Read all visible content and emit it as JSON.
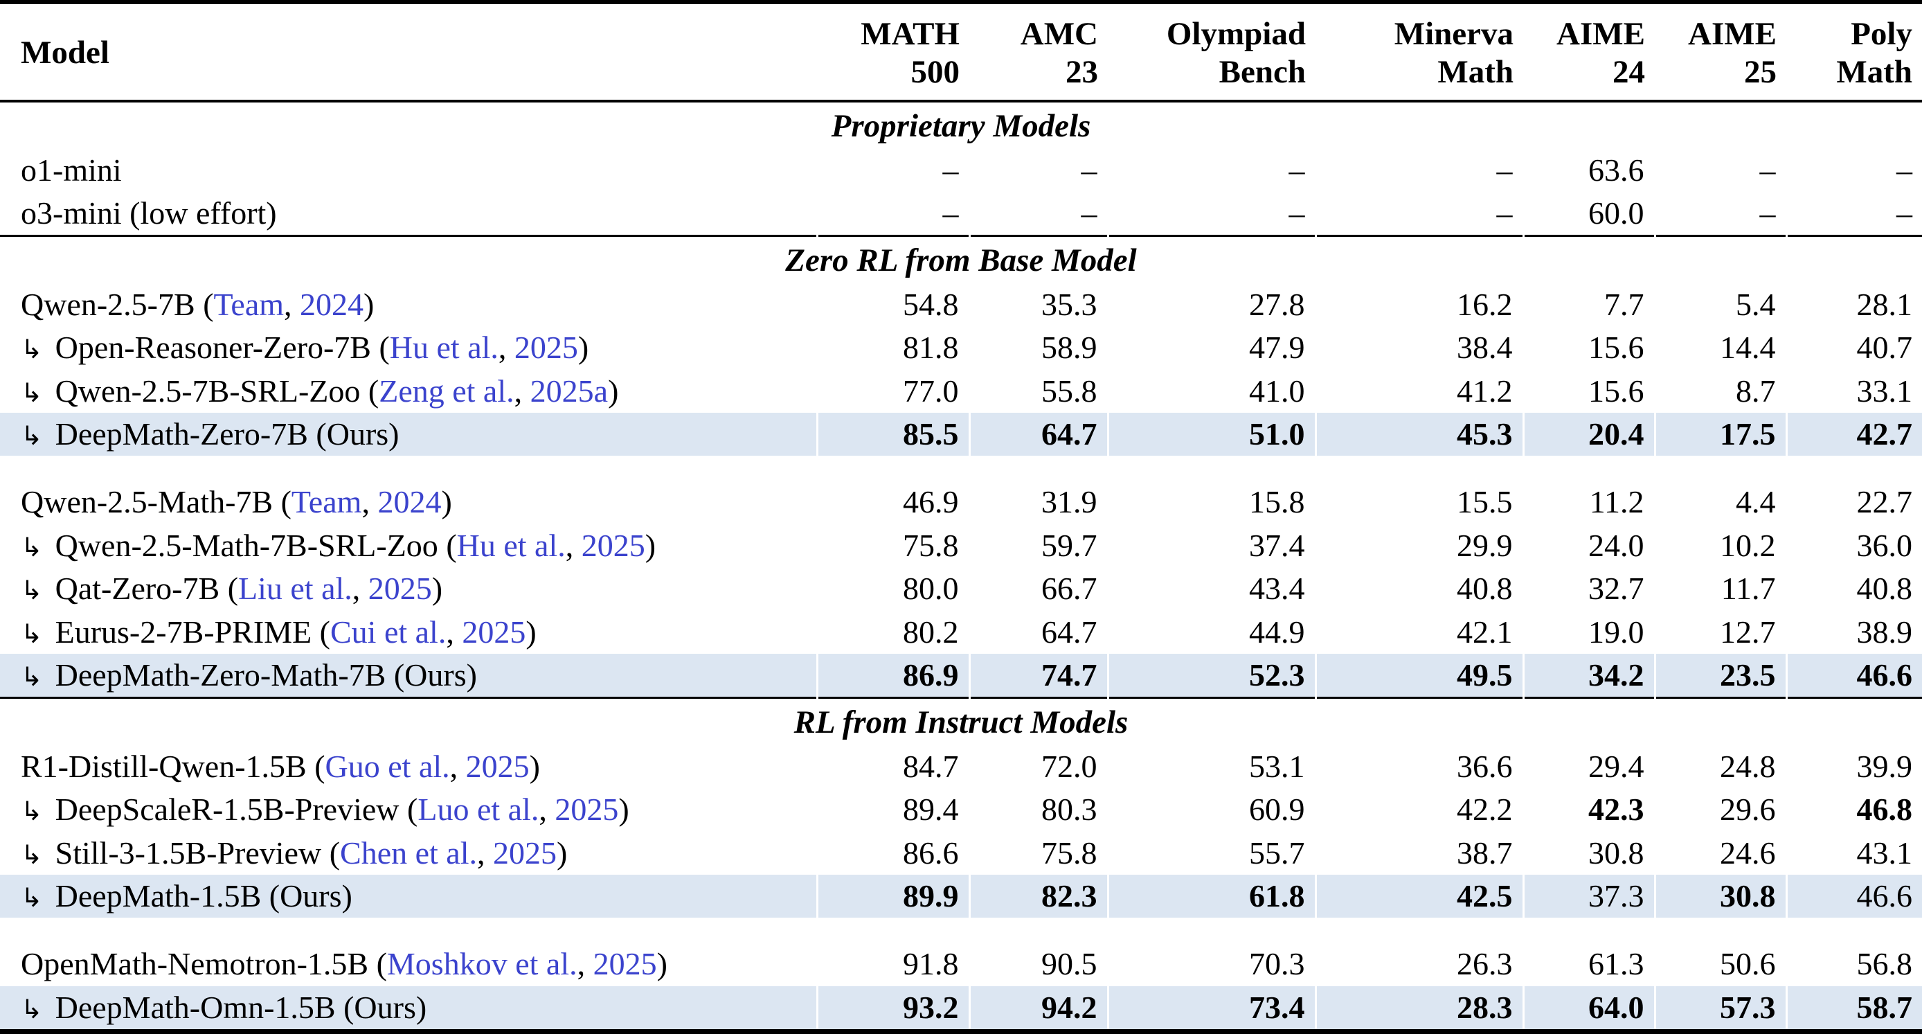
{
  "colors": {
    "citation_link": "#3b43cd",
    "highlight_row": "#dce6f2",
    "rule": "#000000"
  },
  "glyphs": {
    "indent_arrow": "↳",
    "missing_value": "–"
  },
  "table": {
    "header": {
      "model_label": "Model",
      "columns": [
        {
          "line1": "MATH",
          "line2": "500"
        },
        {
          "line1": "AMC",
          "line2": "23"
        },
        {
          "line1": "Olympiad",
          "line2": "Bench"
        },
        {
          "line1": "Minerva",
          "line2": "Math"
        },
        {
          "line1": "AIME",
          "line2": "24"
        },
        {
          "line1": "AIME",
          "line2": "25"
        },
        {
          "line1": "Poly",
          "line2": "Math"
        }
      ]
    },
    "sections": [
      {
        "title": "Proprietary Models",
        "groups": [
          {
            "rows": [
              {
                "indent": false,
                "name": "o1-mini",
                "cite_author": null,
                "cite_year": null,
                "ours": false,
                "highlight": false,
                "values": [
                  "–",
                  "–",
                  "–",
                  "–",
                  "63.6",
                  "–",
                  "–"
                ],
                "bold": [
                  0,
                  0,
                  0,
                  0,
                  0,
                  0,
                  0
                ]
              },
              {
                "indent": false,
                "name": "o3-mini (low effort)",
                "cite_author": null,
                "cite_year": null,
                "ours": false,
                "highlight": false,
                "values": [
                  "–",
                  "–",
                  "–",
                  "–",
                  "60.0",
                  "–",
                  "–"
                ],
                "bold": [
                  0,
                  0,
                  0,
                  0,
                  0,
                  0,
                  0
                ]
              }
            ]
          }
        ]
      },
      {
        "title": "Zero RL from Base Model",
        "groups": [
          {
            "rows": [
              {
                "indent": false,
                "name": "Qwen-2.5-7B",
                "cite_author": "Team",
                "cite_year": "2024",
                "ours": false,
                "highlight": false,
                "values": [
                  "54.8",
                  "35.3",
                  "27.8",
                  "16.2",
                  "7.7",
                  "5.4",
                  "28.1"
                ],
                "bold": [
                  0,
                  0,
                  0,
                  0,
                  0,
                  0,
                  0
                ]
              },
              {
                "indent": true,
                "name": "Open-Reasoner-Zero-7B",
                "cite_author": "Hu et al.",
                "cite_year": "2025",
                "ours": false,
                "highlight": false,
                "values": [
                  "81.8",
                  "58.9",
                  "47.9",
                  "38.4",
                  "15.6",
                  "14.4",
                  "40.7"
                ],
                "bold": [
                  0,
                  0,
                  0,
                  0,
                  0,
                  0,
                  0
                ]
              },
              {
                "indent": true,
                "name": "Qwen-2.5-7B-SRL-Zoo",
                "cite_author": "Zeng et al.",
                "cite_year": "2025a",
                "ours": false,
                "highlight": false,
                "values": [
                  "77.0",
                  "55.8",
                  "41.0",
                  "41.2",
                  "15.6",
                  "8.7",
                  "33.1"
                ],
                "bold": [
                  0,
                  0,
                  0,
                  0,
                  0,
                  0,
                  0
                ]
              },
              {
                "indent": true,
                "name": "DeepMath-Zero-7B",
                "cite_author": null,
                "cite_year": null,
                "ours": true,
                "highlight": true,
                "values": [
                  "85.5",
                  "64.7",
                  "51.0",
                  "45.3",
                  "20.4",
                  "17.5",
                  "42.7"
                ],
                "bold": [
                  1,
                  1,
                  1,
                  1,
                  1,
                  1,
                  1
                ]
              }
            ]
          },
          {
            "rows": [
              {
                "indent": false,
                "name": "Qwen-2.5-Math-7B",
                "cite_author": "Team",
                "cite_year": "2024",
                "ours": false,
                "highlight": false,
                "values": [
                  "46.9",
                  "31.9",
                  "15.8",
                  "15.5",
                  "11.2",
                  "4.4",
                  "22.7"
                ],
                "bold": [
                  0,
                  0,
                  0,
                  0,
                  0,
                  0,
                  0
                ]
              },
              {
                "indent": true,
                "name": "Qwen-2.5-Math-7B-SRL-Zoo",
                "cite_author": "Hu et al.",
                "cite_year": "2025",
                "ours": false,
                "highlight": false,
                "values": [
                  "75.8",
                  "59.7",
                  "37.4",
                  "29.9",
                  "24.0",
                  "10.2",
                  "36.0"
                ],
                "bold": [
                  0,
                  0,
                  0,
                  0,
                  0,
                  0,
                  0
                ]
              },
              {
                "indent": true,
                "name": "Qat-Zero-7B",
                "cite_author": "Liu et al.",
                "cite_year": "2025",
                "ours": false,
                "highlight": false,
                "values": [
                  "80.0",
                  "66.7",
                  "43.4",
                  "40.8",
                  "32.7",
                  "11.7",
                  "40.8"
                ],
                "bold": [
                  0,
                  0,
                  0,
                  0,
                  0,
                  0,
                  0
                ]
              },
              {
                "indent": true,
                "name": "Eurus-2-7B-PRIME",
                "cite_author": "Cui et al.",
                "cite_year": "2025",
                "ours": false,
                "highlight": false,
                "values": [
                  "80.2",
                  "64.7",
                  "44.9",
                  "42.1",
                  "19.0",
                  "12.7",
                  "38.9"
                ],
                "bold": [
                  0,
                  0,
                  0,
                  0,
                  0,
                  0,
                  0
                ]
              },
              {
                "indent": true,
                "name": "DeepMath-Zero-Math-7B",
                "cite_author": null,
                "cite_year": null,
                "ours": true,
                "highlight": true,
                "values": [
                  "86.9",
                  "74.7",
                  "52.3",
                  "49.5",
                  "34.2",
                  "23.5",
                  "46.6"
                ],
                "bold": [
                  1,
                  1,
                  1,
                  1,
                  1,
                  1,
                  1
                ]
              }
            ]
          }
        ]
      },
      {
        "title": "RL from Instruct Models",
        "groups": [
          {
            "rows": [
              {
                "indent": false,
                "name": "R1-Distill-Qwen-1.5B",
                "cite_author": "Guo et al.",
                "cite_year": "2025",
                "ours": false,
                "highlight": false,
                "values": [
                  "84.7",
                  "72.0",
                  "53.1",
                  "36.6",
                  "29.4",
                  "24.8",
                  "39.9"
                ],
                "bold": [
                  0,
                  0,
                  0,
                  0,
                  0,
                  0,
                  0
                ]
              },
              {
                "indent": true,
                "name": "DeepScaleR-1.5B-Preview",
                "cite_author": "Luo et al.",
                "cite_year": "2025",
                "ours": false,
                "highlight": false,
                "values": [
                  "89.4",
                  "80.3",
                  "60.9",
                  "42.2",
                  "42.3",
                  "29.6",
                  "46.8"
                ],
                "bold": [
                  0,
                  0,
                  0,
                  0,
                  1,
                  0,
                  1
                ]
              },
              {
                "indent": true,
                "name": "Still-3-1.5B-Preview",
                "cite_author": "Chen et al.",
                "cite_year": "2025",
                "ours": false,
                "highlight": false,
                "values": [
                  "86.6",
                  "75.8",
                  "55.7",
                  "38.7",
                  "30.8",
                  "24.6",
                  "43.1"
                ],
                "bold": [
                  0,
                  0,
                  0,
                  0,
                  0,
                  0,
                  0
                ]
              },
              {
                "indent": true,
                "name": "DeepMath-1.5B",
                "cite_author": null,
                "cite_year": null,
                "ours": true,
                "highlight": true,
                "values": [
                  "89.9",
                  "82.3",
                  "61.8",
                  "42.5",
                  "37.3",
                  "30.8",
                  "46.6"
                ],
                "bold": [
                  1,
                  1,
                  1,
                  1,
                  0,
                  1,
                  0
                ]
              }
            ]
          },
          {
            "rows": [
              {
                "indent": false,
                "name": "OpenMath-Nemotron-1.5B",
                "cite_author": "Moshkov et al.",
                "cite_year": "2025",
                "ours": false,
                "highlight": false,
                "values": [
                  "91.8",
                  "90.5",
                  "70.3",
                  "26.3",
                  "61.3",
                  "50.6",
                  "56.8"
                ],
                "bold": [
                  0,
                  0,
                  0,
                  0,
                  0,
                  0,
                  0
                ]
              },
              {
                "indent": true,
                "name": "DeepMath-Omn-1.5B",
                "cite_author": null,
                "cite_year": null,
                "ours": true,
                "highlight": true,
                "values": [
                  "93.2",
                  "94.2",
                  "73.4",
                  "28.3",
                  "64.0",
                  "57.3",
                  "58.7"
                ],
                "bold": [
                  1,
                  1,
                  1,
                  1,
                  1,
                  1,
                  1
                ]
              }
            ]
          }
        ]
      }
    ]
  }
}
